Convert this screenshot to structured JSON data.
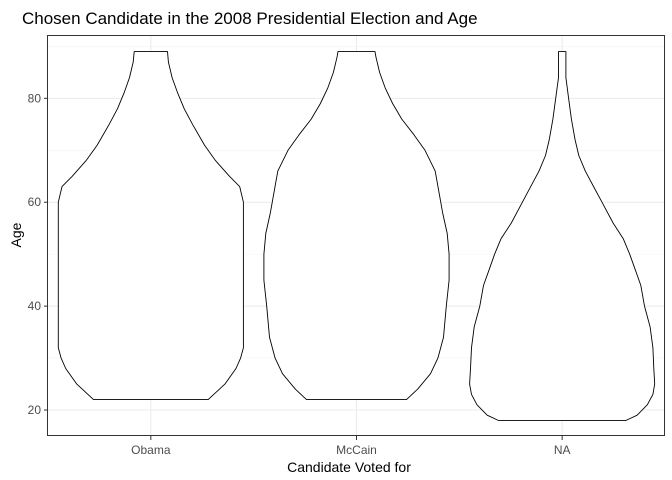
{
  "chart_data": {
    "type": "violin",
    "title": "Chosen Candidate in the 2008 Presidential Election and Age",
    "xlabel": "Candidate Voted for",
    "ylabel": "Age",
    "categories": [
      "Obama",
      "McCain",
      "NA"
    ],
    "ylim": [
      15,
      92
    ],
    "yticks": [
      20,
      40,
      60,
      80
    ],
    "grid": true,
    "theme": "bw",
    "violins": [
      {
        "category": "Obama",
        "min": 22,
        "max": 89,
        "density": [
          [
            22,
            0.62
          ],
          [
            25,
            0.8
          ],
          [
            28,
            0.92
          ],
          [
            30,
            0.97
          ],
          [
            32,
            1.0
          ],
          [
            36,
            1.0
          ],
          [
            42,
            1.0
          ],
          [
            48,
            1.0
          ],
          [
            54,
            1.0
          ],
          [
            58,
            1.0
          ],
          [
            60,
            1.0
          ],
          [
            63,
            0.96
          ],
          [
            65,
            0.85
          ],
          [
            68,
            0.7
          ],
          [
            71,
            0.58
          ],
          [
            75,
            0.45
          ],
          [
            78,
            0.36
          ],
          [
            81,
            0.29
          ],
          [
            84,
            0.23
          ],
          [
            87,
            0.19
          ],
          [
            89,
            0.18
          ]
        ]
      },
      {
        "category": "McCain",
        "min": 22,
        "max": 89,
        "density": [
          [
            22,
            0.54
          ],
          [
            24,
            0.66
          ],
          [
            27,
            0.8
          ],
          [
            30,
            0.88
          ],
          [
            34,
            0.94
          ],
          [
            40,
            0.97
          ],
          [
            45,
            1.0
          ],
          [
            50,
            1.0
          ],
          [
            54,
            0.98
          ],
          [
            58,
            0.93
          ],
          [
            62,
            0.89
          ],
          [
            66,
            0.85
          ],
          [
            70,
            0.74
          ],
          [
            73,
            0.62
          ],
          [
            76,
            0.49
          ],
          [
            79,
            0.39
          ],
          [
            82,
            0.31
          ],
          [
            85,
            0.25
          ],
          [
            88,
            0.21
          ],
          [
            89,
            0.2
          ]
        ]
      },
      {
        "category": "NA",
        "min": 18,
        "max": 89,
        "density": [
          [
            18,
            0.69
          ],
          [
            19,
            0.81
          ],
          [
            21,
            0.92
          ],
          [
            23,
            0.98
          ],
          [
            25,
            1.0
          ],
          [
            28,
            0.99
          ],
          [
            32,
            0.98
          ],
          [
            36,
            0.95
          ],
          [
            40,
            0.89
          ],
          [
            44,
            0.85
          ],
          [
            47,
            0.79
          ],
          [
            50,
            0.73
          ],
          [
            53,
            0.66
          ],
          [
            56,
            0.55
          ],
          [
            60,
            0.43
          ],
          [
            63,
            0.34
          ],
          [
            66,
            0.25
          ],
          [
            69,
            0.18
          ],
          [
            72,
            0.14
          ],
          [
            76,
            0.1
          ],
          [
            80,
            0.07
          ],
          [
            84,
            0.04
          ],
          [
            88,
            0.04
          ],
          [
            89,
            0.04
          ]
        ]
      }
    ]
  }
}
